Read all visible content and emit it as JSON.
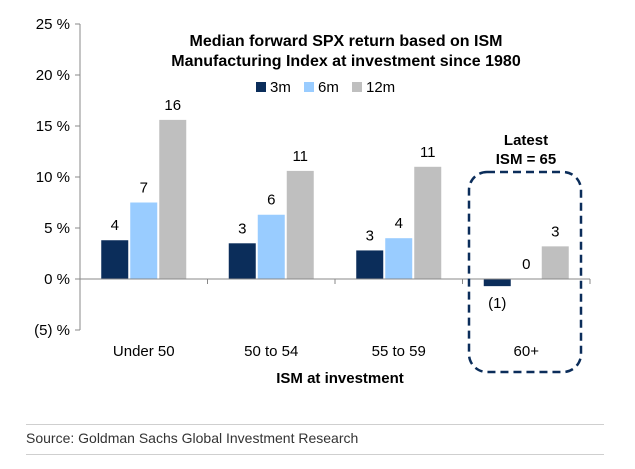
{
  "chart_data": {
    "type": "bar",
    "title_lines": [
      "Median forward SPX return based on ISM",
      "Manufacturing Index at investment since 1980"
    ],
    "xlabel": "ISM at investment",
    "ylabel": "",
    "categories": [
      "Under 50",
      "50 to 54",
      "55 to 59",
      "60+"
    ],
    "series": [
      {
        "name": "3m",
        "color": "#0b2d5a",
        "values": [
          3.8,
          3.5,
          2.8,
          -0.7
        ],
        "labels": [
          "4",
          "3",
          "3",
          "(1)"
        ]
      },
      {
        "name": "6m",
        "color": "#99ccff",
        "values": [
          7.5,
          6.3,
          4.0,
          0.0
        ],
        "labels": [
          "7",
          "6",
          "4",
          "0"
        ]
      },
      {
        "name": "12m",
        "color": "#bfbfbf",
        "values": [
          15.6,
          10.6,
          11.0,
          3.2
        ],
        "labels": [
          "16",
          "11",
          "11",
          "3"
        ]
      }
    ],
    "ylim": [
      -5,
      25
    ],
    "yticks": [
      -5,
      0,
      5,
      10,
      15,
      20,
      25
    ],
    "ytick_labels": [
      "(5) %",
      "0 %",
      "5 %",
      "10 %",
      "15 %",
      "20 %",
      "25 %"
    ],
    "grid": false,
    "legend_position": "top-center",
    "annotation": {
      "lines": [
        "Latest",
        "ISM = 65"
      ],
      "highlight_category": "60+"
    }
  },
  "source": "Source: Goldman Sachs Global Investment Research"
}
